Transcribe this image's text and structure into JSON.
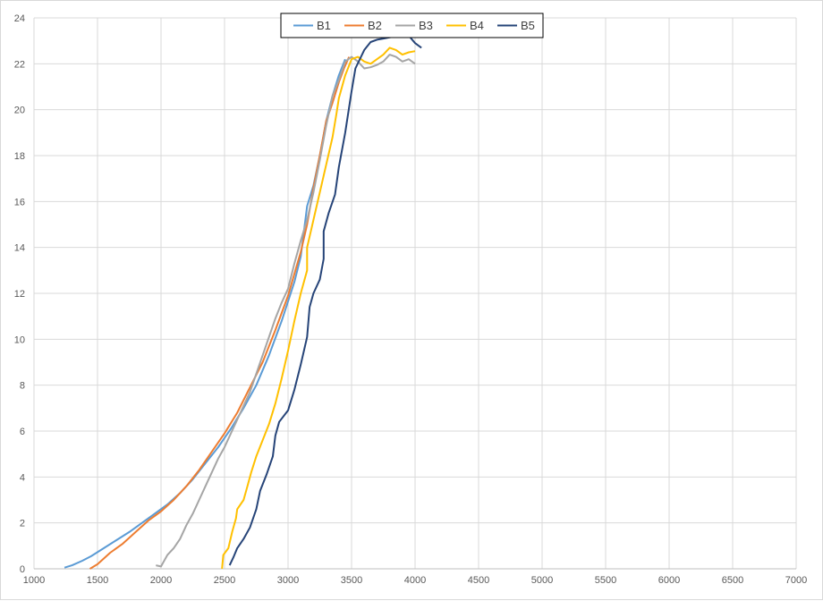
{
  "chart_data": {
    "type": "line",
    "title": "",
    "xlabel": "",
    "ylabel": "",
    "xlim": [
      1000,
      7000
    ],
    "ylim": [
      0,
      24
    ],
    "x_ticks": [
      1000,
      1500,
      2000,
      2500,
      3000,
      3500,
      4000,
      4500,
      5000,
      5500,
      6000,
      6500,
      7000
    ],
    "y_ticks": [
      0,
      2,
      4,
      6,
      8,
      10,
      12,
      14,
      16,
      18,
      20,
      22,
      24
    ],
    "grid": true,
    "legend_position": "top-center",
    "series": [
      {
        "name": "B1",
        "color": "#5b9bd5",
        "points": [
          [
            1240,
            0.05
          ],
          [
            1300,
            0.15
          ],
          [
            1380,
            0.35
          ],
          [
            1450,
            0.55
          ],
          [
            1550,
            0.9
          ],
          [
            1650,
            1.25
          ],
          [
            1750,
            1.6
          ],
          [
            1850,
            2.0
          ],
          [
            1950,
            2.4
          ],
          [
            2050,
            2.8
          ],
          [
            2150,
            3.3
          ],
          [
            2250,
            3.9
          ],
          [
            2350,
            4.6
          ],
          [
            2450,
            5.3
          ],
          [
            2550,
            6.1
          ],
          [
            2650,
            7.0
          ],
          [
            2750,
            8.0
          ],
          [
            2850,
            9.3
          ],
          [
            2950,
            10.8
          ],
          [
            3050,
            12.5
          ],
          [
            3100,
            13.6
          ],
          [
            3150,
            15.8
          ],
          [
            3200,
            16.7
          ],
          [
            3250,
            18.0
          ],
          [
            3300,
            19.5
          ],
          [
            3350,
            20.6
          ],
          [
            3400,
            21.5
          ],
          [
            3450,
            22.2
          ]
        ]
      },
      {
        "name": "B2",
        "color": "#ed7d31",
        "points": [
          [
            1440,
            0.0
          ],
          [
            1500,
            0.2
          ],
          [
            1600,
            0.7
          ],
          [
            1700,
            1.1
          ],
          [
            1800,
            1.6
          ],
          [
            1900,
            2.1
          ],
          [
            2000,
            2.5
          ],
          [
            2100,
            3.0
          ],
          [
            2200,
            3.6
          ],
          [
            2300,
            4.3
          ],
          [
            2400,
            5.1
          ],
          [
            2500,
            5.9
          ],
          [
            2600,
            6.8
          ],
          [
            2700,
            7.9
          ],
          [
            2800,
            9.0
          ],
          [
            2900,
            10.4
          ],
          [
            3000,
            11.9
          ],
          [
            3100,
            13.8
          ],
          [
            3150,
            15.0
          ],
          [
            3200,
            16.6
          ],
          [
            3250,
            18.0
          ],
          [
            3300,
            19.5
          ],
          [
            3350,
            20.3
          ],
          [
            3400,
            21.2
          ],
          [
            3440,
            21.8
          ],
          [
            3480,
            22.3
          ]
        ]
      },
      {
        "name": "B3",
        "color": "#a5a5a5",
        "points": [
          [
            1960,
            0.15
          ],
          [
            2000,
            0.1
          ],
          [
            2020,
            0.3
          ],
          [
            2050,
            0.6
          ],
          [
            2100,
            0.9
          ],
          [
            2150,
            1.3
          ],
          [
            2200,
            1.9
          ],
          [
            2250,
            2.4
          ],
          [
            2300,
            3.0
          ],
          [
            2350,
            3.6
          ],
          [
            2400,
            4.2
          ],
          [
            2450,
            4.8
          ],
          [
            2500,
            5.3
          ],
          [
            2550,
            5.9
          ],
          [
            2600,
            6.5
          ],
          [
            2650,
            7.1
          ],
          [
            2700,
            7.7
          ],
          [
            2750,
            8.5
          ],
          [
            2800,
            9.3
          ],
          [
            2850,
            10.1
          ],
          [
            2900,
            10.9
          ],
          [
            2950,
            11.6
          ],
          [
            3000,
            12.2
          ],
          [
            3050,
            13.3
          ],
          [
            3100,
            14.3
          ],
          [
            3150,
            15.2
          ],
          [
            3200,
            16.4
          ],
          [
            3250,
            17.8
          ],
          [
            3300,
            19.3
          ],
          [
            3350,
            20.6
          ],
          [
            3400,
            21.3
          ],
          [
            3450,
            22.1
          ],
          [
            3500,
            22.3
          ],
          [
            3550,
            22.1
          ],
          [
            3600,
            21.8
          ],
          [
            3650,
            21.85
          ],
          [
            3700,
            21.95
          ],
          [
            3750,
            22.1
          ],
          [
            3800,
            22.4
          ],
          [
            3850,
            22.3
          ],
          [
            3900,
            22.1
          ],
          [
            3950,
            22.2
          ],
          [
            4000,
            22.0
          ]
        ]
      },
      {
        "name": "B4",
        "color": "#ffc000",
        "points": [
          [
            2480,
            0.0
          ],
          [
            2490,
            0.6
          ],
          [
            2530,
            0.9
          ],
          [
            2560,
            1.6
          ],
          [
            2590,
            2.2
          ],
          [
            2600,
            2.6
          ],
          [
            2650,
            3.0
          ],
          [
            2680,
            3.6
          ],
          [
            2710,
            4.2
          ],
          [
            2750,
            4.9
          ],
          [
            2800,
            5.6
          ],
          [
            2850,
            6.3
          ],
          [
            2900,
            7.2
          ],
          [
            2950,
            8.3
          ],
          [
            3000,
            9.5
          ],
          [
            3050,
            10.8
          ],
          [
            3100,
            12.0
          ],
          [
            3150,
            13.0
          ],
          [
            3150,
            14.0
          ],
          [
            3200,
            15.2
          ],
          [
            3250,
            16.4
          ],
          [
            3300,
            17.6
          ],
          [
            3350,
            18.8
          ],
          [
            3380,
            19.8
          ],
          [
            3400,
            20.5
          ],
          [
            3450,
            21.5
          ],
          [
            3500,
            22.2
          ],
          [
            3550,
            22.3
          ],
          [
            3600,
            22.1
          ],
          [
            3650,
            22.0
          ],
          [
            3700,
            22.2
          ],
          [
            3750,
            22.4
          ],
          [
            3800,
            22.7
          ],
          [
            3850,
            22.6
          ],
          [
            3900,
            22.4
          ],
          [
            3950,
            22.5
          ],
          [
            4000,
            22.55
          ]
        ]
      },
      {
        "name": "B5",
        "color": "#264478",
        "points": [
          [
            2540,
            0.15
          ],
          [
            2570,
            0.5
          ],
          [
            2600,
            0.9
          ],
          [
            2650,
            1.3
          ],
          [
            2700,
            1.8
          ],
          [
            2750,
            2.6
          ],
          [
            2780,
            3.4
          ],
          [
            2830,
            4.1
          ],
          [
            2880,
            4.9
          ],
          [
            2900,
            5.8
          ],
          [
            2930,
            6.4
          ],
          [
            3000,
            6.9
          ],
          [
            3050,
            7.8
          ],
          [
            3100,
            8.9
          ],
          [
            3150,
            10.1
          ],
          [
            3170,
            11.4
          ],
          [
            3200,
            12.0
          ],
          [
            3250,
            12.6
          ],
          [
            3280,
            13.5
          ],
          [
            3280,
            14.7
          ],
          [
            3320,
            15.5
          ],
          [
            3370,
            16.3
          ],
          [
            3400,
            17.5
          ],
          [
            3450,
            19.0
          ],
          [
            3500,
            20.8
          ],
          [
            3530,
            21.8
          ],
          [
            3600,
            22.6
          ],
          [
            3650,
            22.95
          ],
          [
            3700,
            23.05
          ],
          [
            3750,
            23.1
          ],
          [
            3800,
            23.15
          ],
          [
            3850,
            23.2
          ],
          [
            3900,
            23.2
          ],
          [
            3950,
            23.25
          ],
          [
            3970,
            23.1
          ],
          [
            4000,
            22.9
          ],
          [
            4050,
            22.7
          ]
        ]
      }
    ]
  }
}
